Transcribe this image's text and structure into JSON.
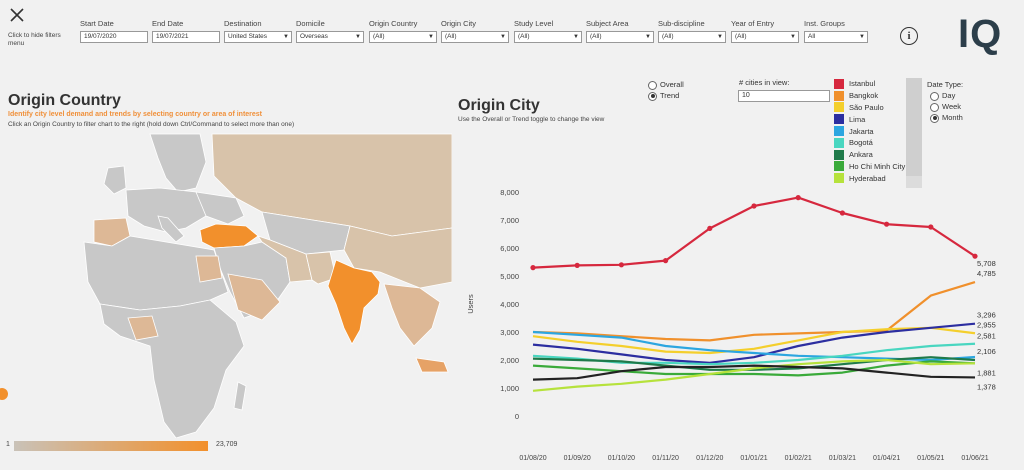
{
  "filters": {
    "close_icon": "close-x-icon",
    "hide_text": "Click to hide filters menu",
    "items": [
      {
        "label": "Start Date",
        "value": "19/07/2020"
      },
      {
        "label": "End Date",
        "value": "19/07/2021"
      },
      {
        "label": "Destination",
        "value": "United States"
      },
      {
        "label": "Domicile",
        "value": "Overseas"
      },
      {
        "label": "Origin Country",
        "value": "(All)"
      },
      {
        "label": "Origin City",
        "value": "(All)"
      },
      {
        "label": "Study Level",
        "value": "(All)"
      },
      {
        "label": "Subject Area",
        "value": "(All)"
      },
      {
        "label": "Sub-discipline",
        "value": "(All)"
      },
      {
        "label": "Year of Entry",
        "value": "(All)"
      },
      {
        "label": "Inst. Groups",
        "value": "All"
      }
    ],
    "info_icon": "info-icon",
    "logo": "IQ"
  },
  "origin_country": {
    "title": "Origin Country",
    "subtitle": "Identify city level demand and trends by selecting country or area of interest",
    "hint": "Click an Origin Country to filter chart to the right (hold down Ctrl/Command to select more than one)",
    "scale_min": "1",
    "scale_max": "23,709",
    "colors": {
      "low": "#c9c2b8",
      "high": "#f2902c",
      "neutral": "#c8c8c8"
    }
  },
  "origin_city": {
    "title": "Origin City",
    "hint": "Use the Overall or Trend toggle to change the view",
    "view_options": [
      {
        "label": "Overall",
        "selected": false
      },
      {
        "label": "Trend",
        "selected": true
      }
    ],
    "n_cities_label": "# cities in view:",
    "n_cities_value": "10",
    "legend": [
      {
        "name": "Istanbul",
        "color": "#d6283e"
      },
      {
        "name": "Bangkok",
        "color": "#f0902c"
      },
      {
        "name": "São Paulo",
        "color": "#f4cf2c"
      },
      {
        "name": "Lima",
        "color": "#2c2ea0"
      },
      {
        "name": "Jakarta",
        "color": "#2ca6e0"
      },
      {
        "name": "Bogotá",
        "color": "#49d6c0"
      },
      {
        "name": "Ankara",
        "color": "#1f7a4a"
      },
      {
        "name": "Ho Chi Minh City",
        "color": "#3aaa3a"
      },
      {
        "name": "Hyderabad",
        "color": "#b6e23c"
      }
    ],
    "date_type_label": "Date Type:",
    "date_types": [
      {
        "label": "Day",
        "selected": false
      },
      {
        "label": "Week",
        "selected": false
      },
      {
        "label": "Month",
        "selected": true
      }
    ]
  },
  "chart_data": {
    "type": "line",
    "ylabel": "Users",
    "ylim": [
      0,
      8000
    ],
    "yticks": [
      "0",
      "1,000",
      "2,000",
      "3,000",
      "4,000",
      "5,000",
      "6,000",
      "7,000",
      "8,000"
    ],
    "categories": [
      "01/08/20",
      "01/09/20",
      "01/10/20",
      "01/11/20",
      "01/12/20",
      "01/01/21",
      "01/02/21",
      "01/03/21",
      "01/04/21",
      "01/05/21",
      "01/06/21"
    ],
    "series": [
      {
        "name": "Istanbul",
        "color": "#d6283e",
        "markers": true,
        "values": [
          5300,
          5380,
          5400,
          5550,
          6700,
          7500,
          7800,
          7250,
          6850,
          6750,
          5708
        ]
      },
      {
        "name": "Bangkok",
        "color": "#f0902c",
        "values": [
          3000,
          2950,
          2850,
          2750,
          2700,
          2900,
          2950,
          3000,
          3050,
          4300,
          4785
        ]
      },
      {
        "name": "São Paulo",
        "color": "#f4cf2c",
        "values": [
          2850,
          2650,
          2500,
          2300,
          2250,
          2400,
          2700,
          3000,
          3100,
          3150,
          2955
        ]
      },
      {
        "name": "Lima",
        "color": "#2c2ea0",
        "values": [
          2550,
          2400,
          2200,
          2000,
          1900,
          2100,
          2500,
          2800,
          3000,
          3150,
          3296
        ]
      },
      {
        "name": "Jakarta",
        "color": "#2ca6e0",
        "values": [
          3000,
          2900,
          2800,
          2500,
          2350,
          2250,
          2150,
          2100,
          2050,
          2000,
          2106
        ]
      },
      {
        "name": "Bogotá",
        "color": "#49d6c0",
        "values": [
          2150,
          2050,
          1900,
          1900,
          1850,
          1900,
          2000,
          2150,
          2350,
          2500,
          2581
        ]
      },
      {
        "name": "Ankara",
        "color": "#1f7a4a",
        "values": [
          2050,
          2000,
          1950,
          1800,
          1650,
          1650,
          1700,
          1850,
          2000,
          2100,
          2000
        ]
      },
      {
        "name": "Ho Chi Minh City",
        "color": "#3aaa3a",
        "values": [
          1800,
          1700,
          1600,
          1500,
          1500,
          1500,
          1450,
          1550,
          1800,
          1950,
          1881
        ]
      },
      {
        "name": "Hyderabad",
        "color": "#b6e23c",
        "values": [
          900,
          1050,
          1150,
          1300,
          1500,
          1700,
          1850,
          1950,
          2000,
          1850,
          1881
        ]
      },
      {
        "name": "",
        "color": "#222222",
        "values": [
          1300,
          1350,
          1600,
          1750,
          1750,
          1800,
          1750,
          1700,
          1550,
          1400,
          1378
        ]
      }
    ],
    "end_labels": [
      "5,708",
      "4,785",
      "3,296",
      "2,955",
      "2,581",
      "2,106",
      "1,881",
      "1,378"
    ]
  }
}
